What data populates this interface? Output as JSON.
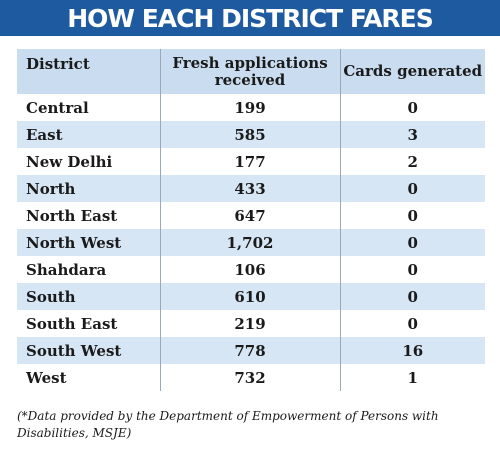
{
  "chart_data": {
    "type": "table",
    "title": "HOW EACH DISTRICT FARES",
    "columns": [
      "District",
      "Fresh applications received",
      "Cards generated"
    ],
    "rows": [
      {
        "district": "Central",
        "applications": "199",
        "cards": "0"
      },
      {
        "district": "East",
        "applications": "585",
        "cards": "3"
      },
      {
        "district": "New Delhi",
        "applications": "177",
        "cards": "2"
      },
      {
        "district": "North",
        "applications": "433",
        "cards": "0"
      },
      {
        "district": "North East",
        "applications": "647",
        "cards": "0"
      },
      {
        "district": "North West",
        "applications": "1,702",
        "cards": "0"
      },
      {
        "district": "Shahdara",
        "applications": "106",
        "cards": "0"
      },
      {
        "district": "South",
        "applications": "610",
        "cards": "0"
      },
      {
        "district": "South East",
        "applications": "219",
        "cards": "0"
      },
      {
        "district": "South West",
        "applications": "778",
        "cards": "16"
      },
      {
        "district": "West",
        "applications": "732",
        "cards": "1"
      }
    ],
    "note": "(*Data provided by the Department of Empowerment of Persons with Disabilities, MSJE)"
  },
  "colors": {
    "banner": "#1e5aa0",
    "header_row": "#c9dcf0",
    "stripe": "#d7e6f5"
  }
}
